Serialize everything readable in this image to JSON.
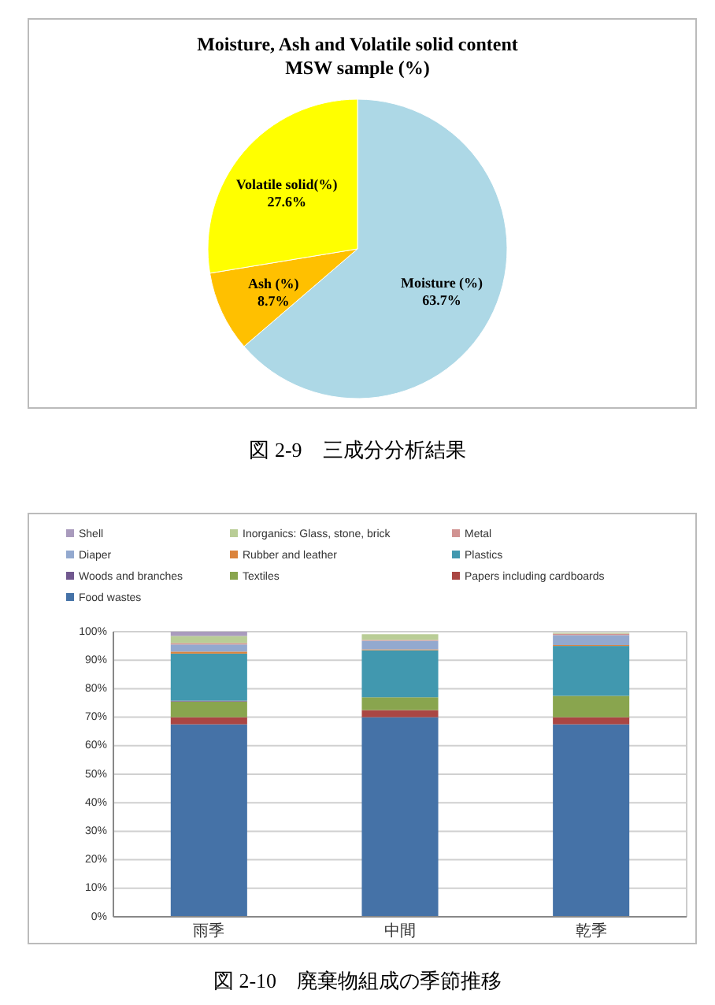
{
  "chart_data": [
    {
      "type": "pie",
      "title": "Moisture, Ash and Volatile solid content\nMSW sample (%)",
      "categories": [
        "Moisture (%)",
        "Ash (%)",
        "Volatile solid(%)"
      ],
      "values": [
        63.7,
        8.7,
        27.6
      ],
      "colors": [
        "#add8e6",
        "#ffc000",
        "#ffff00"
      ],
      "value_labels": [
        "63.7%",
        "8.7%",
        "27.6%"
      ],
      "annotations": [
        "図 2-9　三成分分析結果"
      ]
    },
    {
      "type": "bar",
      "stacked": true,
      "categories": [
        "雨季",
        "中間",
        "乾季"
      ],
      "ylim": [
        0,
        100
      ],
      "yticks": [
        {
          "value": 0,
          "label": "0%"
        },
        {
          "value": 10,
          "label": "10%"
        },
        {
          "value": 20,
          "label": "20%"
        },
        {
          "value": 30,
          "label": "30%"
        },
        {
          "value": 40,
          "label": "40%"
        },
        {
          "value": 50,
          "label": "50%"
        },
        {
          "value": 60,
          "label": "60%"
        },
        {
          "value": 70,
          "label": "70%"
        },
        {
          "value": 80,
          "label": "80%"
        },
        {
          "value": 90,
          "label": "90%"
        },
        {
          "value": 100,
          "label": "100%"
        }
      ],
      "grid": "y",
      "legend": "top",
      "annotations": [
        "図 2-10　廃棄物組成の季節推移"
      ],
      "series": [
        {
          "name": "Food wastes",
          "color": "#4572a7",
          "values": [
            67.5,
            70,
            67.5
          ]
        },
        {
          "name": "Papers including cardboards",
          "color": "#aa4643",
          "values": [
            2.5,
            2.5,
            2.5
          ]
        },
        {
          "name": "Textiles",
          "color": "#89a54e",
          "values": [
            5.5,
            4.5,
            7.5
          ]
        },
        {
          "name": "Woods and branches",
          "color": "#71588f",
          "values": [
            0.3,
            null,
            null
          ]
        },
        {
          "name": "Plastics",
          "color": "#4198af",
          "values": [
            16.5,
            16.5,
            17.5
          ]
        },
        {
          "name": "Rubber and leather",
          "color": "#db843d",
          "values": [
            0.7,
            0.3,
            0.3
          ]
        },
        {
          "name": "Diaper",
          "color": "#93a9cf",
          "values": [
            2.5,
            3,
            3.5
          ]
        },
        {
          "name": "Metal",
          "color": "#d19392",
          "values": [
            0.5,
            0.3,
            0.5
          ]
        },
        {
          "name": "Inorganics: Glass, stone, brick",
          "color": "#b9cd96",
          "values": [
            2.5,
            2,
            0.3
          ]
        },
        {
          "name": "Shell",
          "color": "#a99bbd",
          "values": [
            1.5,
            null,
            null
          ]
        }
      ]
    }
  ]
}
